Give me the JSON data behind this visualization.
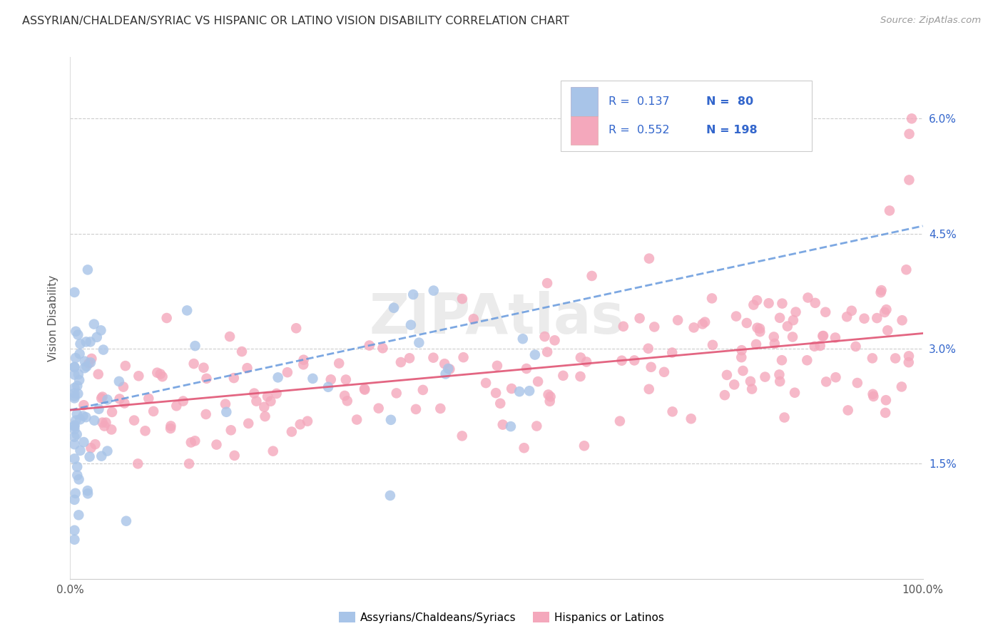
{
  "title": "ASSYRIAN/CHALDEAN/SYRIAC VS HISPANIC OR LATINO VISION DISABILITY CORRELATION CHART",
  "source": "Source: ZipAtlas.com",
  "ylabel": "Vision Disability",
  "x_tick_labels": [
    "0.0%",
    "100.0%"
  ],
  "y_tick_labels": [
    "1.5%",
    "3.0%",
    "4.5%",
    "6.0%"
  ],
  "y_tick_values": [
    0.015,
    0.03,
    0.045,
    0.06
  ],
  "xlim": [
    0.0,
    1.0
  ],
  "ylim": [
    0.0,
    0.068
  ],
  "color_blue": "#a8c4e8",
  "color_pink": "#f4a8bc",
  "color_line_blue": "#6699dd",
  "color_line_pink": "#e05575",
  "color_text_blue": "#3366cc",
  "watermark": "ZIPAtlas",
  "legend_label1": "Assyrians/Chaldeans/Syriacs",
  "legend_label2": "Hispanics or Latinos",
  "blue_line_x0": 0.0,
  "blue_line_y0": 0.022,
  "blue_line_x1": 1.0,
  "blue_line_y1": 0.046,
  "pink_line_x0": 0.0,
  "pink_line_y0": 0.022,
  "pink_line_x1": 1.0,
  "pink_line_y1": 0.032
}
